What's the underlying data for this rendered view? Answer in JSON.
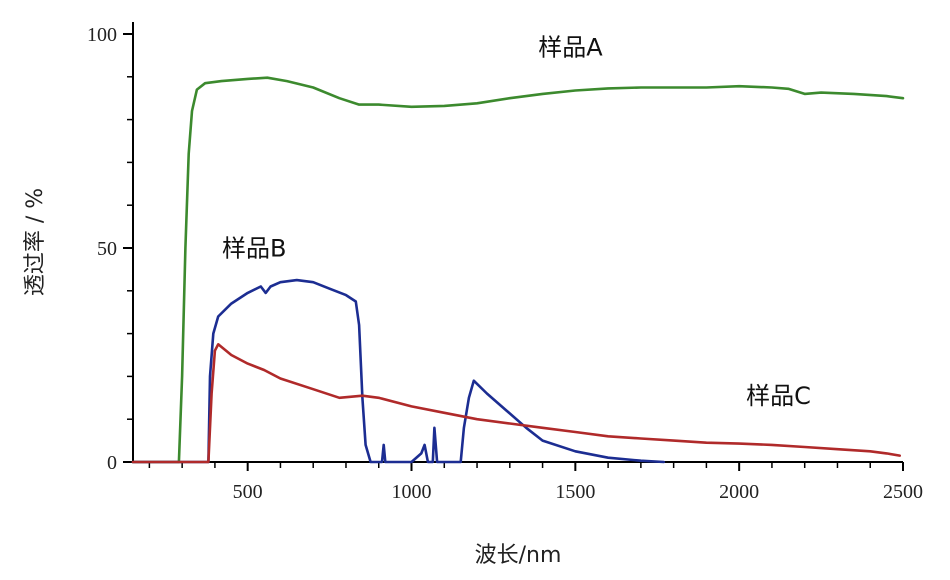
{
  "chart_data": {
    "type": "line",
    "xlabel": "波长/nm",
    "ylabel": "透过率 / %",
    "xlim": [
      200,
      2500
    ],
    "ylim": [
      0,
      100
    ],
    "x_ticks": [
      500,
      1000,
      1500,
      2000,
      2500
    ],
    "y_ticks": [
      0,
      50,
      100
    ],
    "grid": false,
    "series": [
      {
        "name": "样品A",
        "color": "#3c8a2e",
        "points": [
          [
            150,
            0
          ],
          [
            290,
            0
          ],
          [
            300,
            20
          ],
          [
            310,
            50
          ],
          [
            320,
            72
          ],
          [
            330,
            82
          ],
          [
            345,
            87
          ],
          [
            370,
            88.5
          ],
          [
            420,
            89
          ],
          [
            500,
            89.5
          ],
          [
            560,
            89.8
          ],
          [
            620,
            89
          ],
          [
            700,
            87.5
          ],
          [
            780,
            85
          ],
          [
            840,
            83.5
          ],
          [
            900,
            83.5
          ],
          [
            1000,
            83
          ],
          [
            1100,
            83.2
          ],
          [
            1200,
            83.8
          ],
          [
            1300,
            85
          ],
          [
            1400,
            86
          ],
          [
            1500,
            86.8
          ],
          [
            1600,
            87.3
          ],
          [
            1700,
            87.5
          ],
          [
            1800,
            87.5
          ],
          [
            1900,
            87.5
          ],
          [
            2000,
            87.8
          ],
          [
            2100,
            87.5
          ],
          [
            2150,
            87.2
          ],
          [
            2200,
            86
          ],
          [
            2250,
            86.3
          ],
          [
            2350,
            86
          ],
          [
            2450,
            85.5
          ],
          [
            2500,
            85
          ]
        ]
      },
      {
        "name": "样品B",
        "color": "#1c2d92",
        "points": [
          [
            150,
            0
          ],
          [
            380,
            0
          ],
          [
            385,
            20
          ],
          [
            395,
            30
          ],
          [
            410,
            34
          ],
          [
            450,
            37
          ],
          [
            500,
            39.5
          ],
          [
            540,
            41
          ],
          [
            555,
            39.5
          ],
          [
            570,
            41
          ],
          [
            600,
            42
          ],
          [
            650,
            42.5
          ],
          [
            700,
            42
          ],
          [
            750,
            40.5
          ],
          [
            800,
            39
          ],
          [
            830,
            37.5
          ],
          [
            840,
            32
          ],
          [
            850,
            15
          ],
          [
            860,
            4
          ],
          [
            875,
            0
          ],
          [
            910,
            0
          ],
          [
            915,
            4
          ],
          [
            920,
            0
          ],
          [
            1000,
            0
          ],
          [
            1030,
            2
          ],
          [
            1040,
            4
          ],
          [
            1050,
            0
          ],
          [
            1065,
            0
          ],
          [
            1070,
            8
          ],
          [
            1078,
            0
          ],
          [
            1150,
            0
          ],
          [
            1160,
            8
          ],
          [
            1175,
            15
          ],
          [
            1190,
            19
          ],
          [
            1230,
            16
          ],
          [
            1290,
            12
          ],
          [
            1350,
            8
          ],
          [
            1400,
            5
          ],
          [
            1500,
            2.5
          ],
          [
            1600,
            1
          ],
          [
            1700,
            0.3
          ],
          [
            1770,
            0
          ]
        ]
      },
      {
        "name": "样品C",
        "color": "#b02a2a",
        "points": [
          [
            150,
            0
          ],
          [
            380,
            0
          ],
          [
            390,
            16
          ],
          [
            400,
            26
          ],
          [
            410,
            27.5
          ],
          [
            450,
            25
          ],
          [
            500,
            23
          ],
          [
            550,
            21.5
          ],
          [
            600,
            19.5
          ],
          [
            700,
            17
          ],
          [
            780,
            15
          ],
          [
            850,
            15.5
          ],
          [
            900,
            15
          ],
          [
            1000,
            13
          ],
          [
            1100,
            11.5
          ],
          [
            1200,
            10
          ],
          [
            1300,
            9
          ],
          [
            1400,
            8
          ],
          [
            1500,
            7
          ],
          [
            1600,
            6
          ],
          [
            1700,
            5.5
          ],
          [
            1800,
            5
          ],
          [
            1900,
            4.5
          ],
          [
            2000,
            4.3
          ],
          [
            2100,
            4
          ],
          [
            2200,
            3.5
          ],
          [
            2300,
            3
          ],
          [
            2400,
            2.5
          ],
          [
            2450,
            2
          ],
          [
            2490,
            1.5
          ]
        ]
      }
    ],
    "annotations": [
      {
        "text": "样品A",
        "x": 1485,
        "y": 95
      },
      {
        "text": "样品B",
        "x": 520,
        "y": 48
      },
      {
        "text": "样品C",
        "x": 2120,
        "y": 13.5
      }
    ]
  }
}
